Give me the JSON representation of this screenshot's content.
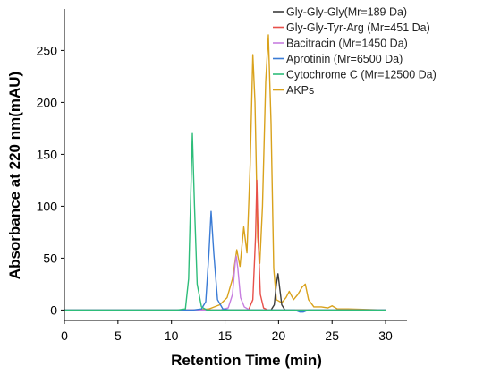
{
  "chart_data": {
    "type": "line",
    "title": "",
    "xlabel": "Retention Time (min)",
    "ylabel": "Absorbance at 220 nm(mAU)",
    "xlim": [
      0,
      32
    ],
    "ylim": [
      -10,
      290
    ],
    "xticks": [
      "0",
      "5",
      "10",
      "15",
      "20",
      "25",
      "30"
    ],
    "yticks": [
      "0",
      "50",
      "100",
      "150",
      "200",
      "250"
    ],
    "grid": false,
    "legend_position": "top-right",
    "series": [
      {
        "name": "Gly-Gly-Gly(Mr=189 Da)",
        "color": "#3c3c3c",
        "points": [
          [
            0,
            0
          ],
          [
            15,
            0
          ],
          [
            19.3,
            0
          ],
          [
            19.6,
            5
          ],
          [
            19.8,
            25
          ],
          [
            19.95,
            35
          ],
          [
            20.1,
            22
          ],
          [
            20.3,
            5
          ],
          [
            20.6,
            0
          ],
          [
            30,
            0
          ]
        ]
      },
      {
        "name": "Gly-Gly-Tyr-Arg (Mr=451 Da)",
        "color": "#e8504a",
        "points": [
          [
            0,
            0
          ],
          [
            16,
            0
          ],
          [
            17.2,
            0
          ],
          [
            17.6,
            10
          ],
          [
            17.85,
            70
          ],
          [
            17.97,
            125
          ],
          [
            18.1,
            70
          ],
          [
            18.3,
            15
          ],
          [
            18.6,
            2
          ],
          [
            19,
            0
          ],
          [
            30,
            0
          ]
        ]
      },
      {
        "name": "Bacitracin (Mr=1450 Da)",
        "color": "#c77ee0",
        "points": [
          [
            0,
            0
          ],
          [
            14.5,
            0
          ],
          [
            15.3,
            2
          ],
          [
            15.7,
            15
          ],
          [
            15.95,
            45
          ],
          [
            16.05,
            52
          ],
          [
            16.2,
            40
          ],
          [
            16.45,
            12
          ],
          [
            16.8,
            3
          ],
          [
            17.3,
            0
          ],
          [
            30,
            0
          ]
        ]
      },
      {
        "name": "Aprotinin (Mr=6500 Da)",
        "color": "#3a7bd5",
        "points": [
          [
            0,
            0
          ],
          [
            12,
            0
          ],
          [
            12.8,
            1
          ],
          [
            13.2,
            8
          ],
          [
            13.5,
            55
          ],
          [
            13.7,
            95
          ],
          [
            13.95,
            55
          ],
          [
            14.3,
            10
          ],
          [
            14.8,
            1
          ],
          [
            15.5,
            0
          ],
          [
            21.5,
            0
          ],
          [
            22,
            -2
          ],
          [
            22.3,
            -2
          ],
          [
            22.8,
            0
          ],
          [
            30,
            0
          ]
        ]
      },
      {
        "name": "Cytochrome C  (Mr=12500 Da)",
        "color": "#2ebd7a",
        "points": [
          [
            0,
            0
          ],
          [
            10.5,
            0
          ],
          [
            11.3,
            1
          ],
          [
            11.6,
            30
          ],
          [
            11.8,
            110
          ],
          [
            11.95,
            170
          ],
          [
            12.15,
            100
          ],
          [
            12.4,
            25
          ],
          [
            12.8,
            3
          ],
          [
            13.3,
            0
          ],
          [
            30,
            0
          ]
        ]
      },
      {
        "name": "AKPs",
        "color": "#d9a21c",
        "points": [
          [
            0,
            0
          ],
          [
            10,
            0
          ],
          [
            11.5,
            0
          ],
          [
            12.3,
            0
          ],
          [
            13.5,
            1
          ],
          [
            14.5,
            5
          ],
          [
            15.2,
            12
          ],
          [
            15.7,
            30
          ],
          [
            16.1,
            58
          ],
          [
            16.4,
            42
          ],
          [
            16.75,
            80
          ],
          [
            17.05,
            55
          ],
          [
            17.35,
            140
          ],
          [
            17.6,
            246
          ],
          [
            17.8,
            200
          ],
          [
            18.05,
            70
          ],
          [
            18.25,
            45
          ],
          [
            18.5,
            100
          ],
          [
            18.8,
            220
          ],
          [
            19.05,
            265
          ],
          [
            19.3,
            180
          ],
          [
            19.55,
            40
          ],
          [
            19.8,
            10
          ],
          [
            20.3,
            7
          ],
          [
            20.7,
            12
          ],
          [
            21.0,
            18
          ],
          [
            21.4,
            10
          ],
          [
            21.8,
            15
          ],
          [
            22.2,
            22
          ],
          [
            22.5,
            25
          ],
          [
            22.8,
            10
          ],
          [
            23.3,
            3
          ],
          [
            24,
            3
          ],
          [
            24.6,
            2
          ],
          [
            25,
            4
          ],
          [
            25.5,
            1
          ],
          [
            26.5,
            1
          ],
          [
            30,
            0
          ]
        ]
      }
    ]
  }
}
